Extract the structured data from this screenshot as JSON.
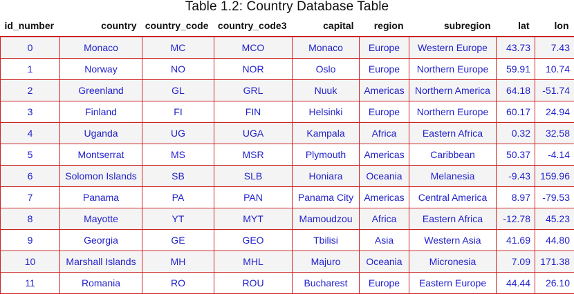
{
  "caption": "Table 1.2: Country Database Table",
  "columns": [
    "id_number",
    "country",
    "country_code",
    "country_code3",
    "capital",
    "region",
    "subregion",
    "lat",
    "lon"
  ],
  "rows": [
    [
      "0",
      "Monaco",
      "MC",
      "MCO",
      "Monaco",
      "Europe",
      "Western Europe",
      "43.73",
      "7.43"
    ],
    [
      "1",
      "Norway",
      "NO",
      "NOR",
      "Oslo",
      "Europe",
      "Northern Europe",
      "59.91",
      "10.74"
    ],
    [
      "2",
      "Greenland",
      "GL",
      "GRL",
      "Nuuk",
      "Americas",
      "Northern America",
      "64.18",
      "-51.74"
    ],
    [
      "3",
      "Finland",
      "FI",
      "FIN",
      "Helsinki",
      "Europe",
      "Northern Europe",
      "60.17",
      "24.94"
    ],
    [
      "4",
      "Uganda",
      "UG",
      "UGA",
      "Kampala",
      "Africa",
      "Eastern Africa",
      "0.32",
      "32.58"
    ],
    [
      "5",
      "Montserrat",
      "MS",
      "MSR",
      "Plymouth",
      "Americas",
      "Caribbean",
      "50.37",
      "-4.14"
    ],
    [
      "6",
      "Solomon Islands",
      "SB",
      "SLB",
      "Honiara",
      "Oceania",
      "Melanesia",
      "-9.43",
      "159.96"
    ],
    [
      "7",
      "Panama",
      "PA",
      "PAN",
      "Panama City",
      "Americas",
      "Central America",
      "8.97",
      "-79.53"
    ],
    [
      "8",
      "Mayotte",
      "YT",
      "MYT",
      "Mamoudzou",
      "Africa",
      "Eastern Africa",
      "-12.78",
      "45.23"
    ],
    [
      "9",
      "Georgia",
      "GE",
      "GEO",
      "Tbilisi",
      "Asia",
      "Western Asia",
      "41.69",
      "44.80"
    ],
    [
      "10",
      "Marshall Islands",
      "MH",
      "MHL",
      "Majuro",
      "Oceania",
      "Micronesia",
      "7.09",
      "171.38"
    ],
    [
      "11",
      "Romania",
      "RO",
      "ROU",
      "Bucharest",
      "Europe",
      "Eastern Europe",
      "44.44",
      "26.10"
    ]
  ],
  "colors": {
    "border": "#cc2222",
    "cell_text": "#2222cc",
    "header_text": "#111111",
    "alt_row": "#f4f4f4"
  }
}
